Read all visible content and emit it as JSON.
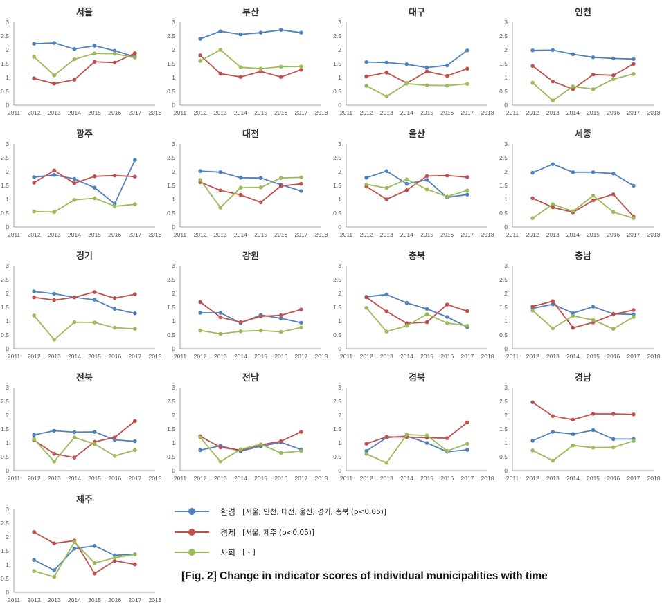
{
  "figure_caption": "[Fig. 2] Change in indicator scores of individual municipalities with time",
  "legend": [
    {
      "name": "환경",
      "note": "[서울, 인천, 대전, 울산, 경기, 충북 (p<0.05)]",
      "color": "#4f81bd"
    },
    {
      "name": "경제",
      "note": "[서울, 제주 (p<0.05)]",
      "color": "#c0504d"
    },
    {
      "name": "사회",
      "note": "[ - ]",
      "color": "#9bbb59"
    }
  ],
  "chart_data": {
    "type": "line",
    "x_ticks": [
      "2011",
      "2012",
      "2013",
      "2014",
      "2015",
      "2016",
      "2017",
      "2018"
    ],
    "x": [
      2012,
      2013,
      2014,
      2015,
      2016,
      2017
    ],
    "xlim": [
      2011,
      2018
    ],
    "ylim": [
      0,
      3
    ],
    "y_ticks": [
      "0",
      "0.5",
      "1",
      "1.5",
      "2",
      "2.5",
      "3"
    ],
    "series_names": [
      "환경",
      "경제",
      "사회"
    ],
    "series_colors": [
      "#4f81bd",
      "#c0504d",
      "#9bbb59"
    ],
    "panels": [
      {
        "title": "서울",
        "series": [
          {
            "name": "환경",
            "values": [
              2.22,
              2.25,
              2.03,
              2.15,
              1.97,
              1.75
            ]
          },
          {
            "name": "경제",
            "values": [
              0.97,
              0.78,
              0.92,
              1.57,
              1.54,
              1.88
            ]
          },
          {
            "name": "사회",
            "values": [
              1.75,
              1.08,
              1.66,
              1.87,
              1.86,
              1.72
            ]
          }
        ]
      },
      {
        "title": "부산",
        "series": [
          {
            "name": "환경",
            "values": [
              2.4,
              2.67,
              2.56,
              2.62,
              2.72,
              2.62
            ]
          },
          {
            "name": "경제",
            "values": [
              1.8,
              1.14,
              1.02,
              1.22,
              1.02,
              1.28
            ]
          },
          {
            "name": "사회",
            "values": [
              1.6,
              2.0,
              1.37,
              1.32,
              1.39,
              1.4
            ]
          }
        ]
      },
      {
        "title": "대구",
        "series": [
          {
            "name": "환경",
            "values": [
              1.56,
              1.54,
              1.48,
              1.36,
              1.44,
              1.98
            ]
          },
          {
            "name": "경제",
            "values": [
              1.04,
              1.18,
              0.8,
              1.22,
              1.06,
              1.32
            ]
          },
          {
            "name": "사회",
            "values": [
              0.7,
              0.32,
              0.78,
              0.72,
              0.71,
              0.77
            ]
          }
        ]
      },
      {
        "title": "인천",
        "series": [
          {
            "name": "환경",
            "values": [
              1.98,
              1.99,
              1.84,
              1.73,
              1.69,
              1.67
            ]
          },
          {
            "name": "경제",
            "values": [
              1.42,
              0.86,
              0.58,
              1.11,
              1.08,
              1.49
            ]
          },
          {
            "name": "사회",
            "values": [
              0.81,
              0.17,
              0.68,
              0.58,
              0.94,
              1.13
            ]
          }
        ]
      },
      {
        "title": "광주",
        "series": [
          {
            "name": "환경",
            "values": [
              1.8,
              1.88,
              1.74,
              1.42,
              0.84,
              2.42
            ]
          },
          {
            "name": "경제",
            "values": [
              1.6,
              2.04,
              1.58,
              1.83,
              1.86,
              1.82
            ]
          },
          {
            "name": "사회",
            "values": [
              0.56,
              0.54,
              0.98,
              1.04,
              0.75,
              0.82
            ]
          }
        ]
      },
      {
        "title": "대전",
        "series": [
          {
            "name": "환경",
            "values": [
              2.02,
              1.98,
              1.78,
              1.77,
              1.53,
              1.3
            ]
          },
          {
            "name": "경제",
            "values": [
              1.62,
              1.32,
              1.16,
              0.89,
              1.48,
              1.56
            ]
          },
          {
            "name": "사회",
            "values": [
              1.7,
              0.7,
              1.42,
              1.43,
              1.77,
              1.79
            ]
          }
        ]
      },
      {
        "title": "울산",
        "series": [
          {
            "name": "환경",
            "values": [
              1.78,
              2.02,
              1.56,
              1.7,
              1.07,
              1.17
            ]
          },
          {
            "name": "경제",
            "values": [
              1.46,
              1.0,
              1.33,
              1.84,
              1.86,
              1.8
            ]
          },
          {
            "name": "사회",
            "values": [
              1.54,
              1.41,
              1.72,
              1.36,
              1.1,
              1.32
            ]
          }
        ]
      },
      {
        "title": "세종",
        "series": [
          {
            "name": "환경",
            "values": [
              1.96,
              2.27,
              1.98,
              1.98,
              1.93,
              1.49
            ]
          },
          {
            "name": "경제",
            "values": [
              1.04,
              0.71,
              0.53,
              0.96,
              1.18,
              0.38
            ]
          },
          {
            "name": "사회",
            "values": [
              0.32,
              0.82,
              0.57,
              1.13,
              0.54,
              0.32
            ]
          }
        ]
      },
      {
        "title": "경기",
        "series": [
          {
            "name": "환경",
            "values": [
              2.07,
              1.99,
              1.86,
              1.77,
              1.44,
              1.28
            ]
          },
          {
            "name": "경제",
            "values": [
              1.86,
              1.76,
              1.86,
              2.05,
              1.83,
              1.97
            ]
          },
          {
            "name": "사회",
            "values": [
              1.2,
              0.33,
              0.96,
              0.95,
              0.76,
              0.72
            ]
          }
        ]
      },
      {
        "title": "강원",
        "series": [
          {
            "name": "환경",
            "values": [
              1.3,
              1.3,
              0.93,
              1.22,
              1.1,
              0.94
            ]
          },
          {
            "name": "경제",
            "values": [
              1.69,
              1.14,
              0.96,
              1.17,
              1.21,
              1.42
            ]
          },
          {
            "name": "사회",
            "values": [
              0.66,
              0.54,
              0.63,
              0.66,
              0.61,
              0.77
            ]
          }
        ]
      },
      {
        "title": "충북",
        "series": [
          {
            "name": "환경",
            "values": [
              1.88,
              1.96,
              1.66,
              1.44,
              1.15,
              0.78
            ]
          },
          {
            "name": "경제",
            "values": [
              1.86,
              1.35,
              0.92,
              0.96,
              1.6,
              1.36
            ]
          },
          {
            "name": "사회",
            "values": [
              1.48,
              0.62,
              0.83,
              1.25,
              0.93,
              0.83
            ]
          }
        ]
      },
      {
        "title": "충남",
        "series": [
          {
            "name": "환경",
            "values": [
              1.46,
              1.61,
              1.29,
              1.52,
              1.26,
              1.24
            ]
          },
          {
            "name": "경제",
            "values": [
              1.53,
              1.72,
              0.76,
              0.95,
              1.24,
              1.4
            ]
          },
          {
            "name": "사회",
            "values": [
              1.38,
              0.74,
              1.19,
              1.04,
              0.72,
              1.15
            ]
          }
        ]
      },
      {
        "title": "전북",
        "series": [
          {
            "name": "환경",
            "values": [
              1.29,
              1.44,
              1.39,
              1.4,
              1.11,
              1.06
            ]
          },
          {
            "name": "경제",
            "values": [
              1.1,
              0.61,
              0.47,
              1.04,
              1.2,
              1.79
            ]
          },
          {
            "name": "사회",
            "values": [
              1.14,
              0.33,
              1.2,
              0.96,
              0.53,
              0.74
            ]
          }
        ]
      },
      {
        "title": "전남",
        "series": [
          {
            "name": "환경",
            "values": [
              0.74,
              0.9,
              0.7,
              0.88,
              1.02,
              0.76
            ]
          },
          {
            "name": "경제",
            "values": [
              1.24,
              0.84,
              0.74,
              0.93,
              1.06,
              1.4
            ]
          },
          {
            "name": "사회",
            "values": [
              1.2,
              0.33,
              0.77,
              0.95,
              0.64,
              0.71
            ]
          }
        ]
      },
      {
        "title": "경북",
        "series": [
          {
            "name": "환경",
            "values": [
              0.71,
              1.19,
              1.25,
              1.0,
              0.68,
              0.75
            ]
          },
          {
            "name": "경제",
            "values": [
              0.97,
              1.22,
              1.21,
              1.19,
              1.17,
              1.74
            ]
          },
          {
            "name": "사회",
            "values": [
              0.6,
              0.28,
              1.3,
              1.27,
              0.71,
              0.97
            ]
          }
        ]
      },
      {
        "title": "경남",
        "series": [
          {
            "name": "환경",
            "values": [
              1.08,
              1.4,
              1.32,
              1.46,
              1.14,
              1.14
            ]
          },
          {
            "name": "경제",
            "values": [
              2.47,
              1.97,
              1.84,
              2.05,
              2.05,
              2.03
            ]
          },
          {
            "name": "사회",
            "values": [
              0.73,
              0.36,
              0.91,
              0.83,
              0.84,
              1.07
            ]
          }
        ]
      },
      {
        "title": "제주",
        "series": [
          {
            "name": "환경",
            "values": [
              1.17,
              0.8,
              1.58,
              1.68,
              1.34,
              1.38
            ]
          },
          {
            "name": "경제",
            "values": [
              2.18,
              1.77,
              1.87,
              0.68,
              1.14,
              1.01
            ]
          },
          {
            "name": "사회",
            "values": [
              0.77,
              0.56,
              1.82,
              1.06,
              1.25,
              1.37
            ]
          }
        ]
      }
    ]
  }
}
